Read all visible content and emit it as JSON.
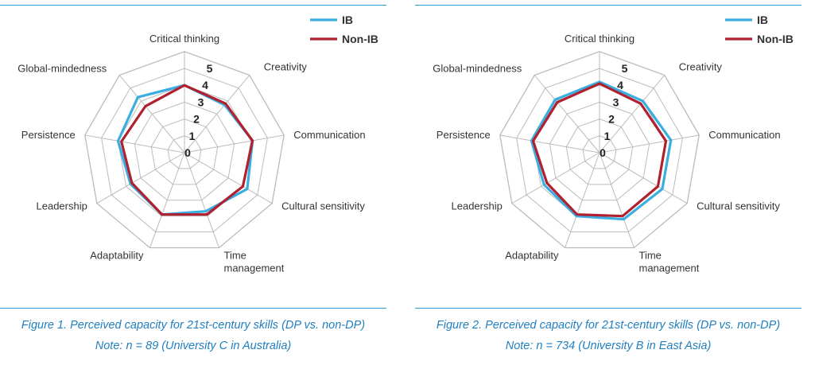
{
  "colors": {
    "ib": "#3aaee0",
    "non_ib": "#b0202e",
    "grid": "#bbbbbb",
    "rule": "#2aa3d4",
    "caption": "#1f7fc0"
  },
  "chart_data": [
    {
      "type": "radar",
      "categories": [
        "Critical thinking",
        "Creativity",
        "Communication",
        "Cultural sensitivity",
        "Time management",
        "Adaptability",
        "Leadership",
        "Persistence",
        "Global-mindedness"
      ],
      "ticks": [
        "0",
        "1",
        "2",
        "3",
        "4",
        "5"
      ],
      "rmax": 5,
      "legend_position": "top-right",
      "series": [
        {
          "name": "IB",
          "values": [
            4.0,
            3.7,
            4.1,
            4.3,
            3.7,
            3.9,
            3.7,
            4.0,
            4.3
          ]
        },
        {
          "name": "Non-IB",
          "values": [
            4.0,
            3.8,
            4.1,
            4.0,
            3.9,
            3.9,
            3.6,
            3.8,
            3.6
          ]
        }
      ],
      "caption_line1": "Figure 1. Perceived capacity for 21st-century skills (DP vs. non-DP)",
      "caption_line2": "Note: n = 89 (University C in Australia)"
    },
    {
      "type": "radar",
      "categories": [
        "Critical thinking",
        "Creativity",
        "Communication",
        "Cultural sensitivity",
        "Time management",
        "Adaptability",
        "Leadership",
        "Persistence",
        "Global-mindedness"
      ],
      "ticks": [
        "0",
        "1",
        "2",
        "3",
        "4",
        "5"
      ],
      "rmax": 5,
      "legend_position": "top-right",
      "series": [
        {
          "name": "IB",
          "values": [
            4.2,
            4.0,
            4.3,
            4.3,
            4.2,
            4.0,
            3.8,
            4.1,
            4.1
          ]
        },
        {
          "name": "Non-IB",
          "values": [
            4.1,
            3.8,
            4.0,
            4.0,
            4.0,
            3.9,
            3.6,
            4.0,
            3.9
          ]
        }
      ],
      "caption_line1": "Figure 2. Perceived capacity for 21st-century skills (DP vs. non-DP)",
      "caption_line2": "Note: n = 734 (University B in East Asia)"
    }
  ]
}
